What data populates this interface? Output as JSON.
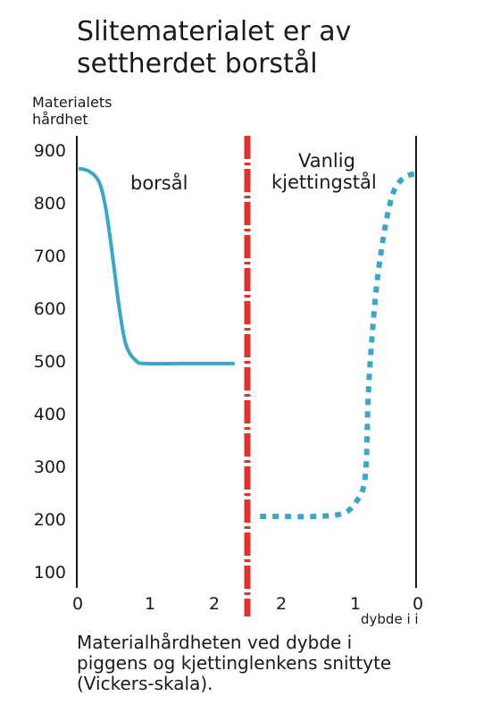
{
  "chart_data": {
    "type": "line",
    "title_lines": [
      "Slitematerialet er av",
      "settherdet borstål"
    ],
    "ylabel_lines": [
      "Materialets",
      "hårdhet"
    ],
    "xlabel": "dybde i i",
    "yticks": [
      900,
      800,
      700,
      600,
      500,
      400,
      300,
      200,
      100
    ],
    "ylim": [
      100,
      900
    ],
    "left_xticks": [
      "0",
      "1",
      "2"
    ],
    "right_xticks": [
      "2",
      "1",
      "0"
    ],
    "series": [
      {
        "name": "borsål",
        "side": "left",
        "color": "#3aa6c9",
        "style": "solid",
        "x": [
          0,
          0.15,
          0.3,
          0.4,
          0.5,
          0.6,
          0.7,
          0.85,
          1.0,
          1.5,
          2.0,
          2.3
        ],
        "y": [
          865,
          860,
          840,
          790,
          700,
          600,
          530,
          500,
          495,
          495,
          495,
          495
        ]
      },
      {
        "name_lines": [
          "Vanlig",
          "kjettingstål"
        ],
        "side": "right",
        "color": "#3aa6c9",
        "style": "dashed",
        "x": [
          2.3,
          2.0,
          1.5,
          1.1,
          0.9,
          0.75,
          0.7,
          0.6,
          0.5,
          0.4,
          0.3,
          0.15,
          0.0
        ],
        "y": [
          205,
          205,
          205,
          210,
          230,
          280,
          450,
          620,
          720,
          790,
          830,
          850,
          855
        ]
      }
    ],
    "divider_color": "#e0312b",
    "caption_lines": [
      "Materialhårdheten ved dybde i",
      "piggens og kjettinglenkens snittyte",
      "(Vickers-skala)."
    ]
  }
}
